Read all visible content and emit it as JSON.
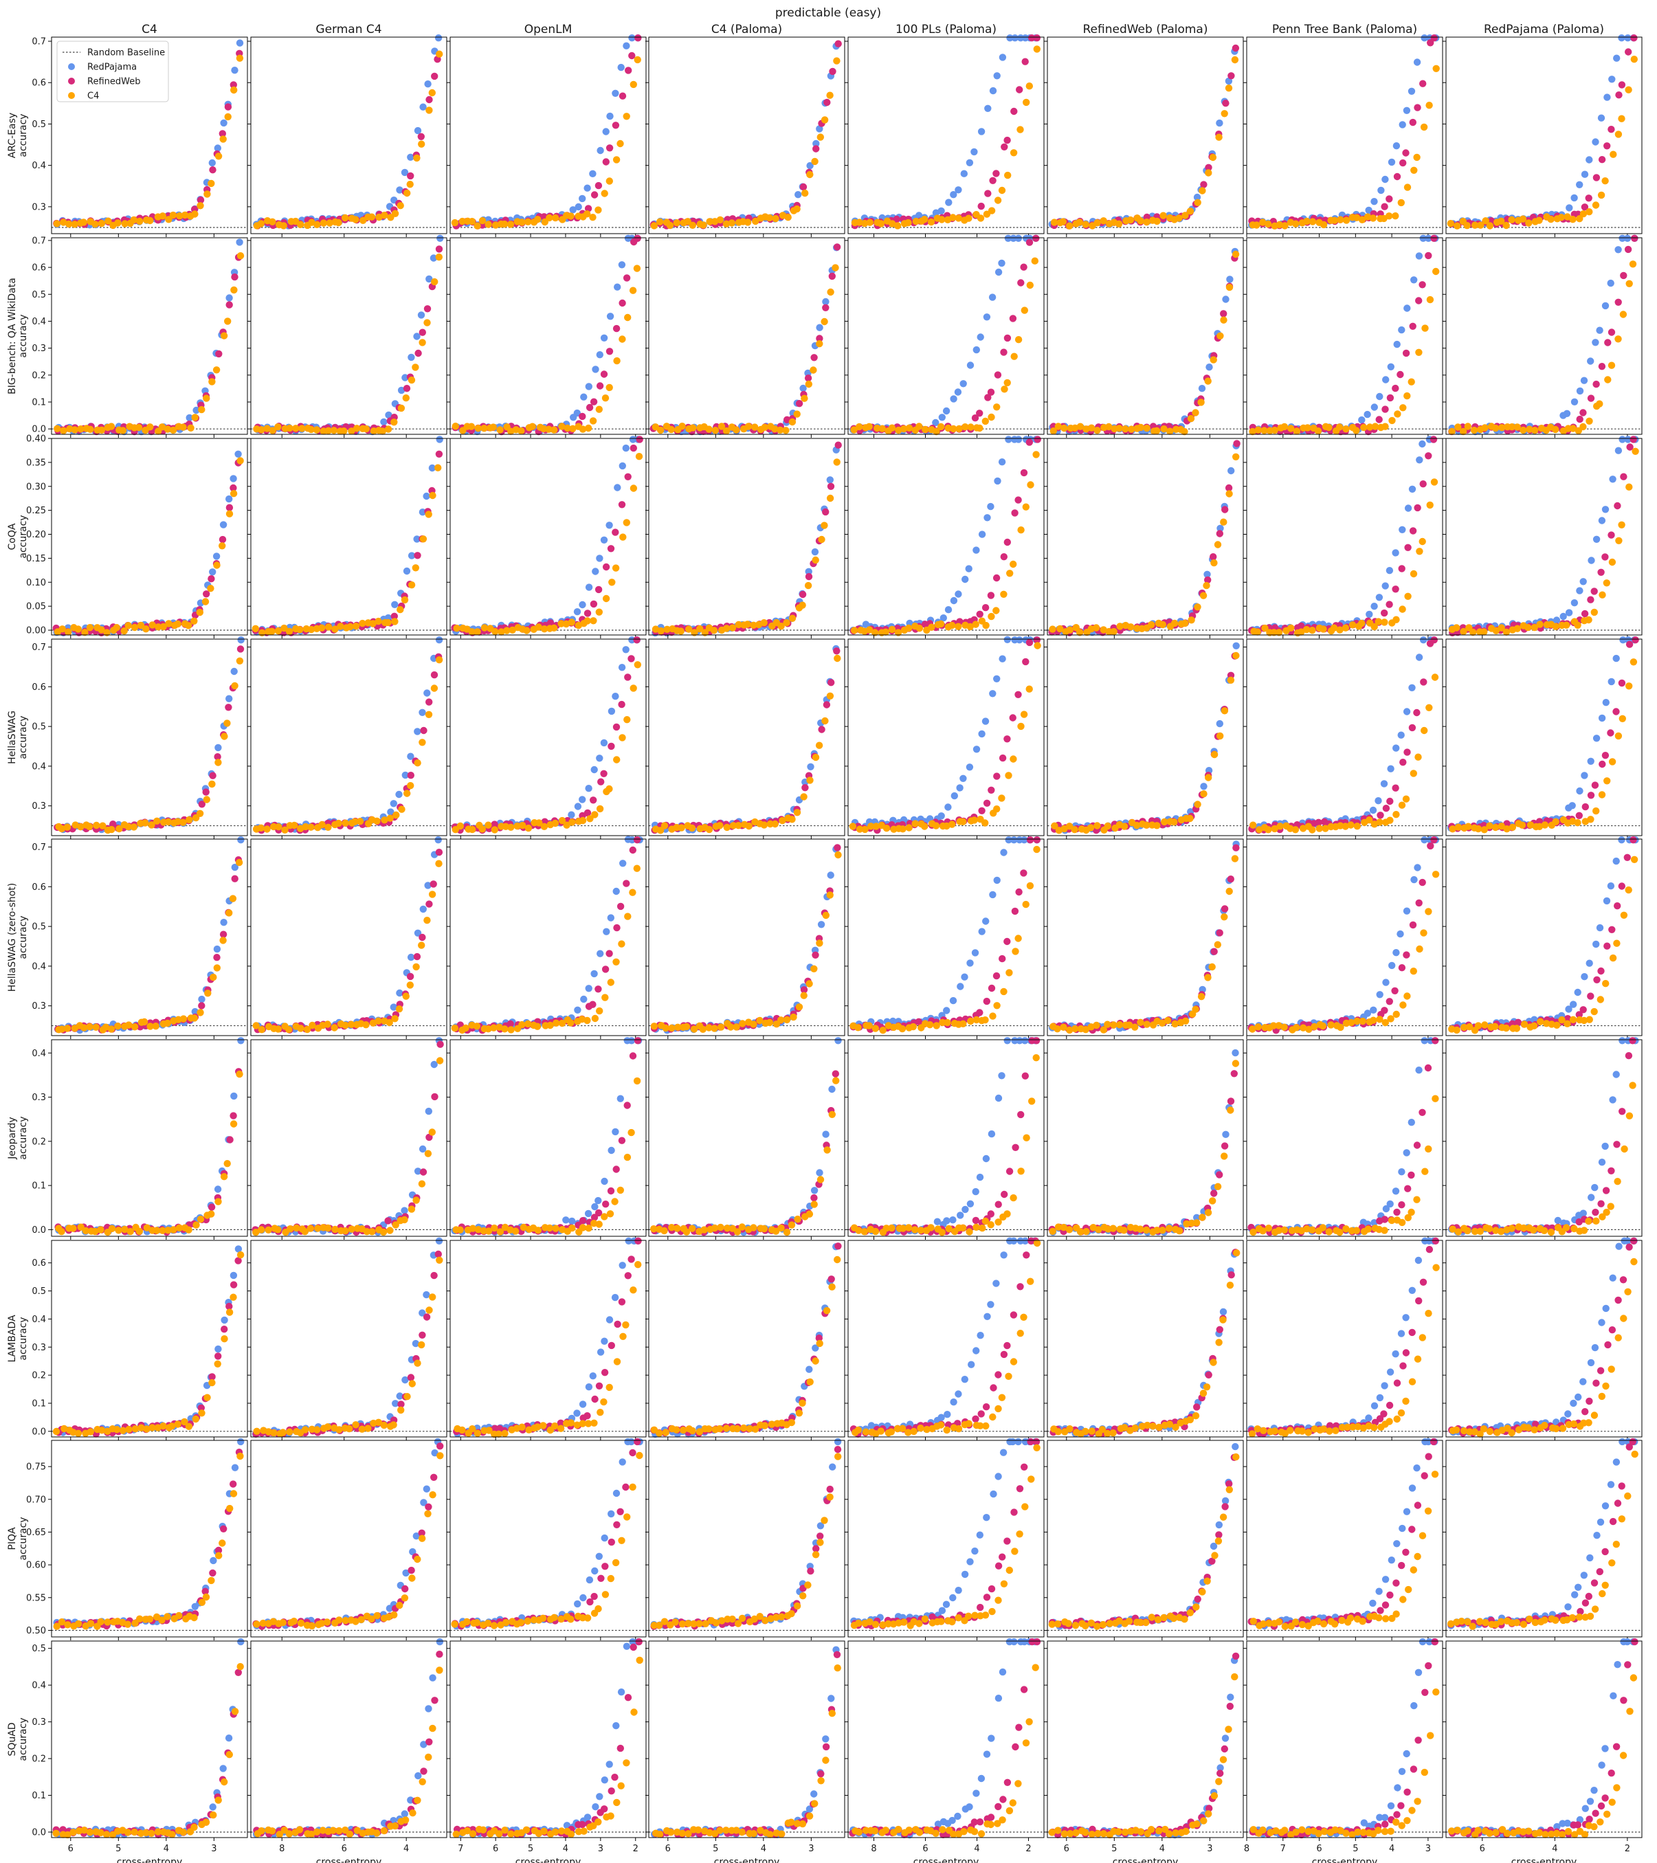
{
  "chart_data": {
    "type": "scatter",
    "title": "predictable (easy)",
    "xlabel": "cross-entropy",
    "columns": [
      "C4",
      "German C4",
      "OpenLM",
      "C4 (Paloma)",
      "100 PLs (Paloma)",
      "RefinedWeb (Paloma)",
      "Penn Tree Bank (Paloma)",
      "RedPajama (Paloma)"
    ],
    "x_axes": [
      {
        "range": [
          6.4,
          2.3
        ],
        "ticks": [
          6,
          5,
          4,
          3
        ]
      },
      {
        "range": [
          9.0,
          2.7
        ],
        "ticks": [
          8,
          6,
          4
        ]
      },
      {
        "range": [
          7.3,
          1.7
        ],
        "ticks": [
          7,
          6,
          5,
          4,
          3,
          2
        ]
      },
      {
        "range": [
          6.4,
          2.3
        ],
        "ticks": [
          6,
          5,
          4,
          3
        ]
      },
      {
        "range": [
          9.0,
          1.4
        ],
        "ticks": [
          8,
          6,
          4,
          2
        ]
      },
      {
        "range": [
          6.4,
          2.3
        ],
        "ticks": [
          6,
          5,
          4,
          3
        ]
      },
      {
        "range": [
          8.0,
          2.6
        ],
        "ticks": [
          8,
          7,
          6,
          5,
          4,
          3
        ]
      },
      {
        "range": [
          7.0,
          1.6
        ],
        "ticks": [
          6,
          4,
          2
        ]
      }
    ],
    "x_direction": "inverted",
    "legend": {
      "placement": "top-left",
      "entries": [
        "Random Baseline",
        "RedPajama",
        "RefinedWeb",
        "C4"
      ]
    },
    "series_colors": {
      "RedPajama": "#6495ED",
      "RefinedWeb": "#D62A7A",
      "C4": "#FFA500",
      "Random Baseline": "#444444"
    },
    "rows": [
      {
        "label": "ARC-Easy",
        "ylabel": "accuracy",
        "ylim": [
          0.235,
          0.71
        ],
        "yticks": [
          "0.3",
          "0.4",
          "0.5",
          "0.6",
          "0.7"
        ],
        "ytick_values": [
          0.3,
          0.4,
          0.5,
          0.6,
          0.7
        ],
        "baseline": 0.25,
        "base": 0.26,
        "top": 0.69
      },
      {
        "label": "BIG-bench: QA WikiData",
        "ylabel": "accuracy",
        "ylim": [
          -0.02,
          0.71
        ],
        "yticks": [
          "0.0",
          "0.1",
          "0.2",
          "0.3",
          "0.4",
          "0.5",
          "0.6",
          "0.7"
        ],
        "ytick_values": [
          0.0,
          0.1,
          0.2,
          0.3,
          0.4,
          0.5,
          0.6,
          0.7
        ],
        "baseline": 0.0,
        "base": 0.0,
        "top": 0.68
      },
      {
        "label": "CoQA",
        "ylabel": "accuracy",
        "ylim": [
          -0.01,
          0.4
        ],
        "yticks": [
          "0.00",
          "0.05",
          "0.10",
          "0.15",
          "0.20",
          "0.25",
          "0.30",
          "0.35",
          "0.40"
        ],
        "ytick_values": [
          0.0,
          0.05,
          0.1,
          0.15,
          0.2,
          0.25,
          0.3,
          0.35,
          0.4
        ],
        "baseline": 0.0,
        "base": 0.0,
        "top": 0.38
      },
      {
        "label": "HellaSWAG",
        "ylabel": "accuracy",
        "ylim": [
          0.225,
          0.72
        ],
        "yticks": [
          "0.3",
          "0.4",
          "0.5",
          "0.6",
          "0.7"
        ],
        "ytick_values": [
          0.3,
          0.4,
          0.5,
          0.6,
          0.7
        ],
        "baseline": 0.25,
        "base": 0.245,
        "top": 0.7
      },
      {
        "label": "HellaSWAG (zero-shot)",
        "ylabel": "accuracy",
        "ylim": [
          0.225,
          0.72
        ],
        "yticks": [
          "0.3",
          "0.4",
          "0.5",
          "0.6",
          "0.7"
        ],
        "ytick_values": [
          0.3,
          0.4,
          0.5,
          0.6,
          0.7
        ],
        "baseline": 0.25,
        "base": 0.245,
        "top": 0.7
      },
      {
        "label": "Jeopardy",
        "ylabel": "accuracy",
        "ylim": [
          -0.015,
          0.43
        ],
        "yticks": [
          "0.0",
          "0.1",
          "0.2",
          "0.3",
          "0.4"
        ],
        "ytick_values": [
          0.0,
          0.1,
          0.2,
          0.3,
          0.4
        ],
        "baseline": 0.0,
        "base": 0.0,
        "top": 0.41
      },
      {
        "label": "LAMBADA",
        "ylabel": "accuracy",
        "ylim": [
          -0.02,
          0.68
        ],
        "yticks": [
          "0.0",
          "0.1",
          "0.2",
          "0.3",
          "0.4",
          "0.5",
          "0.6"
        ],
        "ytick_values": [
          0.0,
          0.1,
          0.2,
          0.3,
          0.4,
          0.5,
          0.6
        ],
        "baseline": 0.0,
        "base": 0.0,
        "top": 0.66
      },
      {
        "label": "PIQA",
        "ylabel": "accuracy",
        "ylim": [
          0.49,
          0.79
        ],
        "yticks": [
          "0.50",
          "0.55",
          "0.60",
          "0.65",
          "0.70",
          "0.75"
        ],
        "ytick_values": [
          0.5,
          0.55,
          0.6,
          0.65,
          0.7,
          0.75
        ],
        "baseline": 0.5,
        "base": 0.51,
        "top": 0.78
      },
      {
        "label": "SQuAD",
        "ylabel": "accuracy",
        "ylim": [
          -0.015,
          0.52
        ],
        "yticks": [
          "0.0",
          "0.1",
          "0.2",
          "0.3",
          "0.4",
          "0.5"
        ],
        "ytick_values": [
          0.0,
          0.1,
          0.2,
          0.3,
          0.4,
          0.5
        ],
        "baseline": 0.0,
        "base": 0.0,
        "top": 0.5
      }
    ],
    "series": [
      {
        "name": "RedPajama",
        "color": "#6495ED"
      },
      {
        "name": "RefinedWeb",
        "color": "#D62A7A"
      },
      {
        "name": "C4",
        "color": "#FFA500"
      }
    ]
  }
}
